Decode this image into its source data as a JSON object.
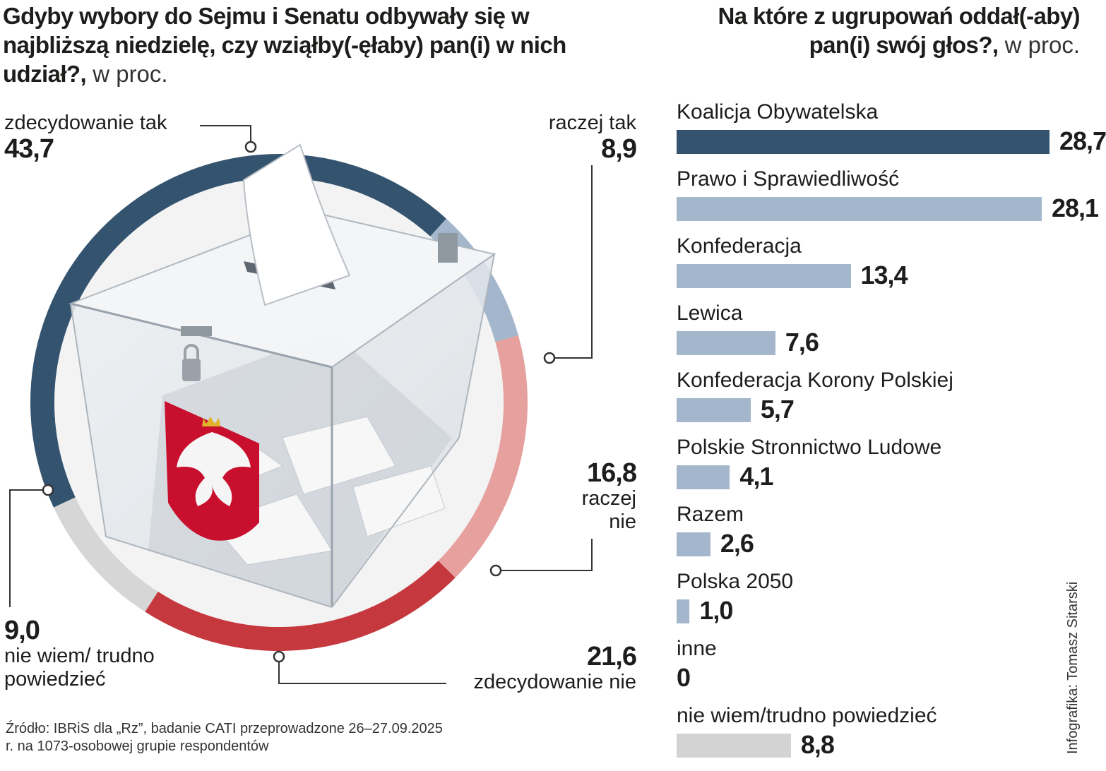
{
  "left_chart": {
    "title": "Gdyby wybory do Sejmu i Senatu odbywały się w najbliższą niedzielę, czy wziąłby(-ęłaby) pan(i) w nich udział?,",
    "unit": " w proc."
  },
  "right_chart": {
    "title": "Na które z ugrupowań oddał(-aby) pan(i) swój głos?,",
    "unit": " w proc."
  },
  "chart_data": [
    {
      "type": "pie",
      "title": "Gdyby wybory do Sejmu i Senatu odbywały się w najbliższą niedzielę, czy wziąłby(-ęłaby) pan(i) w nich udział?, w proc.",
      "donut": true,
      "slices": [
        {
          "label": "zdecydowanie tak",
          "value": 43.7,
          "display": "43,7",
          "color": "#34536f"
        },
        {
          "label": "raczej tak",
          "value": 8.9,
          "display": "8,9",
          "color": "#a3b6cc"
        },
        {
          "label": "raczej nie",
          "value": 16.8,
          "display": "16,8",
          "color": "#e6a09e"
        },
        {
          "label": "zdecydowanie nie",
          "value": 21.6,
          "display": "21,6",
          "color": "#c5383e"
        },
        {
          "label": "nie wiem/ trudno powiedzieć",
          "value": 9.0,
          "display": "9,0",
          "color": "#d6d6d6"
        }
      ]
    },
    {
      "type": "bar",
      "orientation": "horizontal",
      "title": "Na które z ugrupowań oddał(-aby) pan(i) swój głos?, w proc.",
      "categories": [
        "Koalicja Obywatelska",
        "Prawo i Sprawiedliwość",
        "Konfederacja",
        "Lewica",
        "Konfederacja Korony Polskiej",
        "Polskie Stronnictwo Ludowe",
        "Razem",
        "Polska 2050",
        "inne",
        "nie wiem/trudno powiedzieć"
      ],
      "values": [
        28.7,
        28.1,
        13.4,
        7.6,
        5.7,
        4.1,
        2.6,
        1.0,
        0,
        8.8
      ],
      "display": [
        "28,7",
        "28,1",
        "13,4",
        "7,6",
        "5,7",
        "4,1",
        "2,6",
        "1,0",
        "0",
        "8,8"
      ],
      "colors": [
        "#34536f",
        "#a3b6cc",
        "#a3b6cc",
        "#a3b6cc",
        "#a3b6cc",
        "#a3b6cc",
        "#a3b6cc",
        "#a3b6cc",
        "#a3b6cc",
        "#d3d3d3"
      ],
      "xlim": [
        0,
        28.7
      ]
    }
  ],
  "source": "Źródło: IBRiS dla „Rz”, badanie CATI przeprowadzone 26–27.09.2025 r. na 1073-osobowej grupie respondentów",
  "credit": "Infografika: Tomasz Sitarski"
}
